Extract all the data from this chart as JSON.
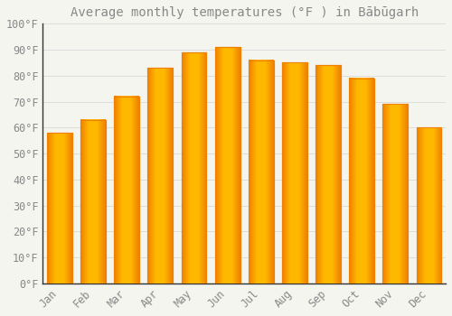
{
  "title": "Average monthly temperatures (°F ) in Bābūgarh",
  "months": [
    "Jan",
    "Feb",
    "Mar",
    "Apr",
    "May",
    "Jun",
    "Jul",
    "Aug",
    "Sep",
    "Oct",
    "Nov",
    "Dec"
  ],
  "values": [
    58,
    63,
    72,
    83,
    89,
    91,
    86,
    85,
    84,
    79,
    69,
    60
  ],
  "bar_color_center": "#FFB800",
  "bar_color_edge": "#F08000",
  "background_color": "#F5F5F0",
  "grid_color": "#DDDDDD",
  "text_color": "#888888",
  "axis_color": "#333333",
  "ylim": [
    0,
    100
  ],
  "yticks": [
    0,
    10,
    20,
    30,
    40,
    50,
    60,
    70,
    80,
    90,
    100
  ],
  "ytick_labels": [
    "0°F",
    "10°F",
    "20°F",
    "30°F",
    "40°F",
    "50°F",
    "60°F",
    "70°F",
    "80°F",
    "90°F",
    "100°F"
  ],
  "title_fontsize": 10,
  "tick_fontsize": 8.5,
  "bar_width": 0.75
}
